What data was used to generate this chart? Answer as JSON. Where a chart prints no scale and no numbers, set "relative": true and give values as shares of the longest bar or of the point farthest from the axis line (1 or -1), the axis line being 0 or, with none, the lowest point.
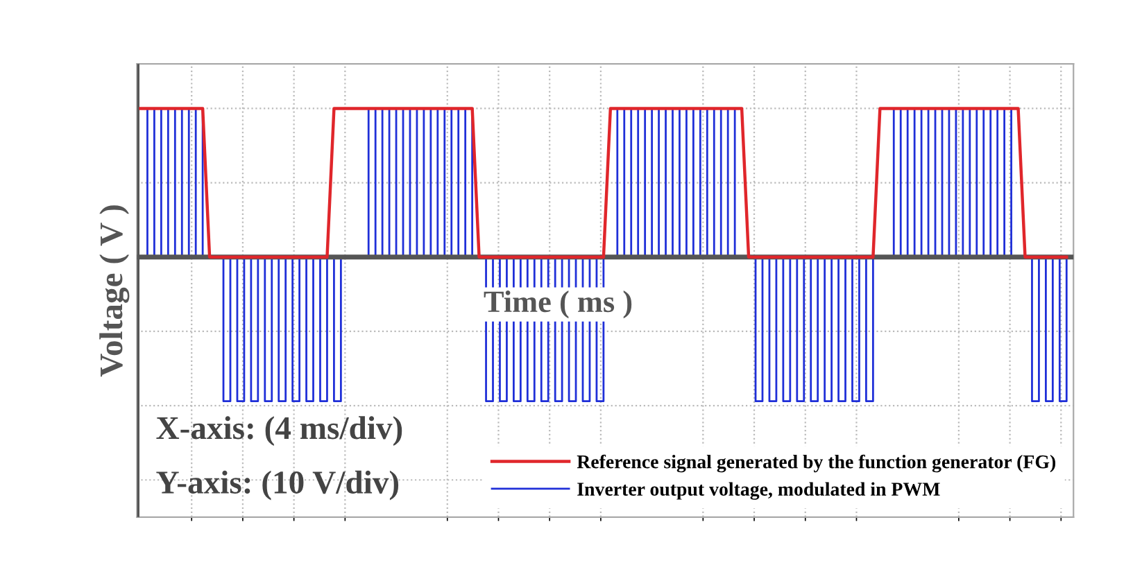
{
  "chart_data": {
    "type": "line",
    "relative": true,
    "xlabel": "Time ( ms )",
    "ylabel": "Voltage ( V )",
    "grid": true,
    "legend": "bottom right",
    "annotations": [
      "X-axis: (4 ms/div)",
      "Y-axis: (10 V/div)"
    ],
    "categories": [
      null,
      null,
      null,
      null,
      null,
      null,
      null,
      null,
      null,
      null,
      null,
      null,
      null,
      null,
      null,
      null,
      null,
      null,
      null,
      null,
      null,
      null,
      null,
      null,
      null,
      null,
      null,
      null,
      null,
      null,
      null,
      null,
      null,
      null,
      null,
      null,
      null,
      null,
      null,
      null,
      null,
      null,
      null,
      null,
      null,
      null,
      null,
      null,
      null,
      null,
      null,
      null,
      null,
      null,
      null,
      null,
      null,
      null,
      null,
      null,
      null,
      null,
      null,
      null,
      null,
      null,
      null,
      null,
      null,
      null,
      null,
      null,
      null,
      null,
      null,
      null,
      null,
      null,
      null,
      null,
      null,
      null,
      null,
      null,
      null,
      null,
      null,
      null,
      null,
      null,
      null,
      null,
      null,
      null,
      null,
      null,
      null,
      null,
      null,
      null,
      null,
      null,
      null,
      null,
      null,
      null,
      null,
      null,
      null,
      null,
      null,
      null,
      null,
      null,
      null,
      null,
      null,
      null,
      null,
      null,
      null,
      null,
      null,
      null,
      null,
      null,
      null,
      null,
      null,
      null,
      null,
      null,
      null,
      null,
      null
    ],
    "series": [
      {
        "name": "Inverter output voltage, modulated in PWM",
        "type": "step",
        "color": "#1f2fd8",
        "values": [
          1,
          0,
          1,
          0,
          1,
          0,
          1,
          0,
          1,
          0,
          0,
          0,
          -0.97,
          0,
          -0.97,
          0,
          -0.97,
          0,
          -0.97,
          0,
          -0.97,
          0,
          -0.97,
          0,
          -0.97,
          0,
          -0.97,
          0,
          -0.97,
          0,
          0,
          0,
          0,
          1,
          0,
          1,
          0,
          1,
          0,
          1,
          0,
          1,
          0,
          1,
          0,
          1,
          0,
          1,
          0,
          0,
          -0.97,
          0,
          -0.97,
          0,
          -0.97,
          0,
          -0.97,
          0,
          -0.97,
          0,
          -0.97,
          0,
          -0.97,
          0,
          -0.97,
          0,
          -0.97,
          0,
          0,
          1,
          0,
          1,
          0,
          1,
          0,
          1,
          0,
          1,
          0,
          1,
          0,
          1,
          0,
          1,
          0,
          1,
          0,
          0,
          0,
          -0.97,
          0,
          -0.97,
          0,
          -0.97,
          0,
          -0.97,
          0,
          -0.97,
          0,
          -0.97,
          0,
          -0.97,
          0,
          -0.97,
          0,
          -0.97,
          0,
          0,
          0,
          1,
          0,
          1,
          0,
          1,
          0,
          1,
          0,
          1,
          0,
          1,
          0,
          1,
          0,
          1,
          0,
          1,
          0,
          0,
          0,
          -0.97,
          0,
          -0.97,
          0,
          -0.97,
          0
        ]
      },
      {
        "name": "Reference signal generated by the function generator (FG)",
        "color": "#e0262b",
        "values": [
          1,
          1,
          1,
          1,
          1,
          1,
          1,
          1,
          1,
          1,
          0,
          0,
          0,
          0,
          0,
          0,
          0,
          0,
          0,
          0,
          0,
          0,
          0,
          0,
          0,
          0,
          0,
          0,
          1,
          1,
          1,
          1,
          1,
          1,
          1,
          1,
          1,
          1,
          1,
          1,
          1,
          1,
          1,
          1,
          1,
          1,
          1,
          1,
          1,
          0,
          0,
          0,
          0,
          0,
          0,
          0,
          0,
          0,
          0,
          0,
          0,
          0,
          0,
          0,
          0,
          0,
          0,
          0,
          1,
          1,
          1,
          1,
          1,
          1,
          1,
          1,
          1,
          1,
          1,
          1,
          1,
          1,
          1,
          1,
          1,
          1,
          1,
          1,
          0,
          0,
          0,
          0,
          0,
          0,
          0,
          0,
          0,
          0,
          0,
          0,
          0,
          0,
          0,
          0,
          0,
          0,
          0,
          1,
          1,
          1,
          1,
          1,
          1,
          1,
          1,
          1,
          1,
          1,
          1,
          1,
          1,
          1,
          1,
          1,
          1,
          1,
          1,
          1,
          0,
          0,
          0,
          0,
          0,
          0,
          0
        ]
      }
    ]
  }
}
